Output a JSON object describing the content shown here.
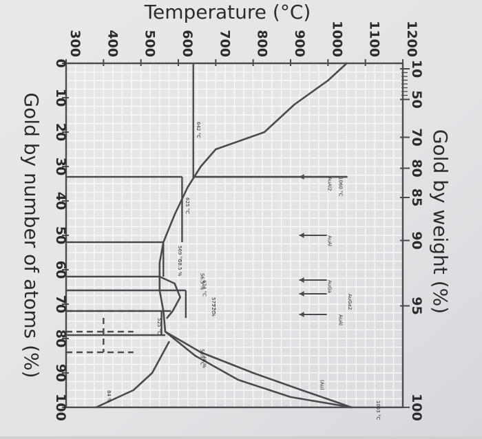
{
  "chart_data": {
    "type": "line",
    "title": "",
    "orientation": "rotated-90-clockwise",
    "xlabel": "Gold by number of atoms (%)",
    "x2label": "Gold by weight (%)",
    "ylabel": "Temperature (°C)",
    "xlim": [
      0,
      100
    ],
    "ylim": [
      300,
      1200
    ],
    "x_ticks": [
      0,
      10,
      20,
      30,
      40,
      50,
      60,
      70,
      80,
      90,
      100
    ],
    "x_tick_labels": [
      "0",
      "10",
      "20",
      "30",
      "40",
      "50",
      "60",
      "70",
      "80",
      "90",
      "100"
    ],
    "y_ticks": [
      300,
      400,
      500,
      600,
      700,
      800,
      900,
      1000,
      1100,
      1200
    ],
    "y_tick_labels": [
      "300",
      "400",
      "500",
      "600",
      "700",
      "800",
      "900",
      "1000",
      "1100",
      "1200"
    ],
    "x2_ticks": [
      {
        "label": "10",
        "at_percent": 1.6
      },
      {
        "label": "50",
        "at_percent": 10.5
      },
      {
        "label": "70",
        "at_percent": 21.5
      },
      {
        "label": "80",
        "at_percent": 30.5
      },
      {
        "label": "85",
        "at_percent": 39
      },
      {
        "label": "90",
        "at_percent": 51.5
      },
      {
        "label": "95",
        "at_percent": 70.5
      },
      {
        "label": "100",
        "at_percent": 100
      }
    ],
    "grid": true,
    "series": [
      {
        "name": "",
        "points": [
          [
            0,
            1050
          ],
          [
            5,
            1000
          ],
          [
            12,
            910
          ],
          [
            20,
            830
          ],
          [
            25,
            700
          ],
          [
            30,
            660
          ],
          [
            36,
            625
          ],
          [
            44,
            590
          ],
          [
            52,
            560
          ],
          [
            58,
            550
          ],
          [
            62,
            550
          ],
          [
            66,
            550
          ],
          [
            72,
            560
          ],
          [
            78,
            565
          ],
          [
            84,
            660
          ],
          [
            90,
            800
          ],
          [
            95,
            930
          ],
          [
            98,
            1010
          ],
          [
            100,
            1063
          ]
        ]
      },
      {
        "name": "",
        "points": [
          [
            33,
            1050
          ],
          [
            33,
            640
          ]
        ]
      },
      {
        "name": "",
        "points": [
          [
            62,
            550
          ],
          [
            64,
            590
          ],
          [
            68,
            605
          ],
          [
            72,
            585
          ],
          [
            74,
            570
          ]
        ]
      },
      {
        "name": "",
        "points": [
          [
            78,
            565
          ],
          [
            85,
            645
          ],
          [
            92,
            760
          ],
          [
            97,
            900
          ],
          [
            100,
            1063
          ]
        ]
      },
      {
        "name": "",
        "points": [
          [
            81,
            575
          ],
          [
            90,
            530
          ],
          [
            95,
            480
          ],
          [
            98,
            420
          ],
          [
            100,
            380
          ]
        ]
      }
    ],
    "annotations": [
      {
        "text": "AuAl2",
        "x": 33,
        "y": 1000
      },
      {
        "text": "1060 °C",
        "x": 33,
        "y": 1030
      },
      {
        "text": "AuAl",
        "x": 50,
        "y": 1000
      },
      {
        "text": "AuGa",
        "x": 63,
        "y": 1000
      },
      {
        "text": "AuGa2",
        "x": 67,
        "y": 1055
      },
      {
        "text": "AuAl",
        "x": 73,
        "y": 1030
      },
      {
        "text": "1063 °C",
        "x": 98,
        "y": 1130
      },
      {
        "text": "(Au)",
        "x": 92,
        "y": 980
      },
      {
        "text": "642 °C",
        "x": 17,
        "y": 650
      },
      {
        "text": "625 °C",
        "x": 39,
        "y": 620
      },
      {
        "text": "569 °C",
        "x": 53,
        "y": 600
      },
      {
        "text": "58.5 %",
        "x": 57,
        "y": 600
      },
      {
        "text": "56.5 %",
        "x": 61,
        "y": 660
      },
      {
        "text": "624 °C",
        "x": 63,
        "y": 665
      },
      {
        "text": "575 °C",
        "x": 68,
        "y": 690
      },
      {
        "text": "72 %",
        "x": 70,
        "y": 690
      },
      {
        "text": "525 °C",
        "x": 74,
        "y": 545
      },
      {
        "text": "565 °C",
        "x": 83,
        "y": 660
      },
      {
        "text": "48 %",
        "x": 85,
        "y": 665
      },
      {
        "text": "84 %",
        "x": 95,
        "y": 410
      }
    ]
  }
}
